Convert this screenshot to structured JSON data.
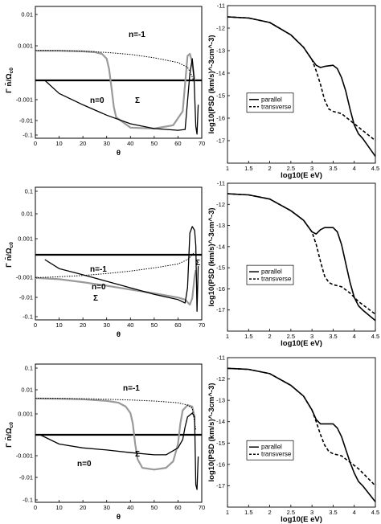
{
  "chart_data": [
    {
      "id": "growth-1",
      "type": "line",
      "xlabel": "θ",
      "ylabel": "Γ n̄/Ω",
      "ylabel_sub": "c0",
      "xlim": [
        0,
        70
      ],
      "x_ticks": [
        "0",
        "10",
        "20",
        "30",
        "40",
        "50",
        "60",
        "70"
      ],
      "y_ticks": [
        "0.01",
        "0.001",
        "-0.001",
        "-0.01",
        "-0.1"
      ],
      "y_scale": "symlog",
      "annotations": [
        "n=-1",
        "n=0",
        "Σ"
      ],
      "series": [
        {
          "name": "n=-1",
          "style": "solid-gray",
          "x": [
            0,
            10,
            20,
            25,
            28,
            30,
            31,
            32,
            33,
            34,
            40,
            50,
            58,
            62,
            64,
            65,
            66,
            67
          ],
          "y": [
            0.007,
            0.0069,
            0.0065,
            0.006,
            0.005,
            0.003,
            0.001,
            -0.0006,
            -0.005,
            -0.015,
            -0.045,
            -0.05,
            -0.035,
            -0.008,
            0.004,
            0.005,
            0.002,
            0
          ]
        },
        {
          "name": "n=0",
          "style": "solid-black",
          "x": [
            4,
            10,
            20,
            30,
            40,
            50,
            60,
            63,
            65,
            66,
            66.8,
            67.5,
            68,
            68.5
          ],
          "y": [
            -0.0003,
            -0.0012,
            -0.004,
            -0.012,
            -0.03,
            -0.05,
            -0.06,
            -0.055,
            0.0006,
            0.003,
            0.0003,
            -0.04,
            -0.09,
            -0.004
          ]
        },
        {
          "name": "Σ",
          "style": "dotted-black",
          "x": [
            0,
            10,
            20,
            30,
            40,
            50,
            60,
            64,
            65.5,
            66.5
          ],
          "y": [
            0.0072,
            0.0071,
            0.0067,
            0.0058,
            0.0047,
            0.0033,
            0.002,
            0.0012,
            0.0006,
            0.0001
          ]
        }
      ]
    },
    {
      "id": "psd-1",
      "type": "line",
      "xlabel": "log10(E eV)",
      "ylabel": "log10(PSD (km/s)^-3cm^-3)",
      "xlim": [
        1,
        4.5
      ],
      "ylim": [
        -18,
        -11
      ],
      "x_ticks": [
        "1",
        "1.5",
        "2",
        "2.5",
        "3",
        "3.5",
        "4",
        "4.5"
      ],
      "y_ticks": [
        "-11",
        "-12",
        "-13",
        "-14",
        "-15",
        "-16",
        "-17"
      ],
      "legend": [
        "parallel",
        "transverse"
      ],
      "series": [
        {
          "name": "parallel",
          "style": "solid",
          "x": [
            1,
            1.5,
            2,
            2.5,
            2.8,
            3.0,
            3.1,
            3.2,
            3.3,
            3.5,
            3.6,
            3.7,
            3.8,
            3.9,
            4.0,
            4.1,
            4.2,
            4.5
          ],
          "y": [
            -11.5,
            -11.55,
            -11.75,
            -12.3,
            -12.85,
            -13.4,
            -13.65,
            -13.75,
            -13.7,
            -13.65,
            -13.8,
            -14.2,
            -14.8,
            -15.6,
            -16.3,
            -16.7,
            -16.9,
            -17.7
          ]
        },
        {
          "name": "transverse",
          "style": "dashed",
          "x": [
            1,
            1.5,
            2,
            2.5,
            2.8,
            3.0,
            3.1,
            3.2,
            3.3,
            3.4,
            3.5,
            3.7,
            3.9,
            4.1,
            4.3,
            4.5
          ],
          "y": [
            -11.5,
            -11.55,
            -11.75,
            -12.3,
            -12.85,
            -13.4,
            -13.9,
            -14.5,
            -15.2,
            -15.6,
            -15.7,
            -15.8,
            -16.1,
            -16.4,
            -16.7,
            -17.0
          ]
        }
      ]
    },
    {
      "id": "growth-2",
      "type": "line",
      "xlabel": "θ",
      "ylabel": "Γ n̄/Ω",
      "ylabel_sub": "c0",
      "xlim": [
        0,
        70
      ],
      "x_ticks": [
        "0",
        "10",
        "20",
        "30",
        "40",
        "50",
        "60",
        "70"
      ],
      "y_ticks": [
        "0.1",
        "0.01",
        "0.001",
        "-0.001",
        "-0.01",
        "-0.1"
      ],
      "y_scale": "symlog",
      "annotations": [
        "n=-1",
        "n=0",
        "Σ",
        "Σ"
      ],
      "series": [
        {
          "name": "n=-1",
          "style": "solid-gray",
          "x": [
            0,
            10,
            20,
            30,
            40,
            50,
            60,
            63,
            65,
            66,
            66.5,
            67,
            67.5
          ],
          "y": [
            -0.0035,
            -0.004,
            -0.0055,
            -0.008,
            -0.012,
            -0.018,
            -0.028,
            -0.035,
            -0.06,
            -0.03,
            -0.01,
            -0.003,
            -0.0015
          ]
        },
        {
          "name": "n=0",
          "style": "solid-black",
          "x": [
            4,
            10,
            20,
            30,
            40,
            50,
            60,
            63,
            64,
            65,
            66,
            67,
            67.5,
            68,
            68.5
          ],
          "y": [
            -0.0005,
            -0.0013,
            -0.0025,
            -0.005,
            -0.01,
            -0.02,
            -0.035,
            -0.05,
            -0.01,
            0.003,
            0.006,
            0.004,
            0.0008,
            -0.12,
            -0.001
          ]
        },
        {
          "name": "Σ",
          "style": "dotted-black",
          "x": [
            0,
            10,
            20,
            30,
            40,
            50,
            60,
            64,
            66,
            67
          ],
          "y": [
            -0.0034,
            -0.0031,
            -0.0027,
            -0.0022,
            -0.0017,
            -0.0012,
            -0.0008,
            -0.0005,
            -0.0002,
            0.0004
          ]
        }
      ]
    },
    {
      "id": "psd-2",
      "type": "line",
      "xlabel": "log10(E eV)",
      "ylabel": "log10(PSD (km/s)^-3cm^-3)",
      "xlim": [
        1,
        4.5
      ],
      "ylim": [
        -18,
        -11
      ],
      "x_ticks": [
        "1",
        "1.5",
        "2",
        "2.5",
        "3",
        "3.5",
        "4",
        "4.5"
      ],
      "y_ticks": [
        "-11",
        "-12",
        "-13",
        "-14",
        "-15",
        "-16",
        "-17"
      ],
      "legend": [
        "parallel",
        "transverse"
      ],
      "series": [
        {
          "name": "parallel",
          "style": "solid",
          "x": [
            1,
            1.5,
            2,
            2.5,
            2.8,
            3.0,
            3.1,
            3.2,
            3.3,
            3.5,
            3.6,
            3.7,
            3.8,
            3.9,
            4.0,
            4.1,
            4.2,
            4.5
          ],
          "y": [
            -11.5,
            -11.55,
            -11.75,
            -12.3,
            -12.75,
            -13.3,
            -13.4,
            -13.2,
            -13.1,
            -13.1,
            -13.3,
            -13.9,
            -14.8,
            -15.7,
            -16.4,
            -16.8,
            -17.0,
            -17.5
          ]
        },
        {
          "name": "transverse",
          "style": "dashed",
          "x": [
            1,
            1.5,
            2,
            2.5,
            2.8,
            3.0,
            3.1,
            3.2,
            3.3,
            3.4,
            3.5,
            3.7,
            3.9,
            4.1,
            4.3,
            4.5
          ],
          "y": [
            -11.5,
            -11.55,
            -11.75,
            -12.3,
            -12.75,
            -13.3,
            -13.9,
            -14.7,
            -15.4,
            -15.7,
            -15.8,
            -15.9,
            -16.2,
            -16.6,
            -16.9,
            -17.2
          ]
        }
      ]
    },
    {
      "id": "growth-3",
      "type": "line",
      "xlabel": "θ",
      "ylabel": "Γ n̄/Ω",
      "ylabel_sub": "c0",
      "xlim": [
        0,
        70
      ],
      "x_ticks": [
        "0",
        "10",
        "20",
        "30",
        "40",
        "50",
        "60",
        "70"
      ],
      "y_ticks": [
        "0.1",
        "0.01",
        "0.001",
        "-0.001",
        "-0.01",
        "-0.1"
      ],
      "y_scale": "symlog",
      "annotations": [
        "n=-1",
        "n=0",
        "Σ"
      ],
      "series": [
        {
          "name": "n=-1",
          "style": "solid-gray",
          "x": [
            0,
            10,
            20,
            30,
            35,
            38,
            40,
            41,
            42,
            43,
            45,
            50,
            55,
            58,
            60,
            61,
            62,
            64,
            66,
            67
          ],
          "y": [
            0.014,
            0.0138,
            0.013,
            0.011,
            0.009,
            0.006,
            0.003,
            0.001,
            -0.0008,
            -0.004,
            -0.01,
            -0.012,
            -0.01,
            -0.005,
            -0.0008,
            0.001,
            0.004,
            0.007,
            0.006,
            0.002
          ]
        },
        {
          "name": "n=0",
          "style": "solid-black",
          "x": [
            2,
            10,
            20,
            30,
            40,
            50,
            55,
            60,
            62,
            63,
            64,
            66,
            67,
            67.5,
            68,
            68.5
          ],
          "y": [
            -0.0003,
            -0.0008,
            -0.0012,
            -0.0015,
            -0.002,
            -0.0025,
            -0.0025,
            -0.0012,
            -0.0005,
            0.0007,
            0.002,
            0.003,
            0.002,
            -0.06,
            -0.1,
            -0.003
          ]
        },
        {
          "name": "Σ",
          "style": "dotted-black",
          "x": [
            0,
            10,
            20,
            30,
            40,
            50,
            60,
            64,
            66,
            67.5
          ],
          "y": [
            0.0145,
            0.0143,
            0.0138,
            0.013,
            0.012,
            0.0108,
            0.009,
            0.007,
            0.005,
            0.0005
          ]
        }
      ]
    },
    {
      "id": "psd-3",
      "type": "line",
      "xlabel": "log10(E eV)",
      "ylabel": "log10(PSD (km/s)^-3cm^-3)",
      "xlim": [
        1,
        4.5
      ],
      "ylim": [
        -18,
        -11
      ],
      "x_ticks": [
        "1",
        "1.5",
        "2",
        "2.5",
        "3",
        "3.5",
        "4",
        "4.5"
      ],
      "y_ticks": [
        "-11",
        "-12",
        "-13",
        "-14",
        "-15",
        "-16",
        "-17"
      ],
      "legend": [
        "parallel",
        "transverse"
      ],
      "series": [
        {
          "name": "parallel",
          "style": "solid",
          "x": [
            1,
            1.5,
            2,
            2.5,
            2.8,
            3.0,
            3.1,
            3.2,
            3.3,
            3.5,
            3.6,
            3.7,
            3.8,
            3.9,
            4.0,
            4.1,
            4.2,
            4.5
          ],
          "y": [
            -11.5,
            -11.55,
            -11.75,
            -12.3,
            -12.8,
            -13.45,
            -13.9,
            -14.1,
            -14.1,
            -14.1,
            -14.3,
            -14.7,
            -15.3,
            -15.9,
            -16.4,
            -16.8,
            -17.0,
            -17.75
          ]
        },
        {
          "name": "transverse",
          "style": "dashed",
          "x": [
            1,
            1.5,
            2,
            2.5,
            2.8,
            3.0,
            3.1,
            3.2,
            3.3,
            3.4,
            3.5,
            3.7,
            3.9,
            4.1,
            4.3,
            4.5
          ],
          "y": [
            -11.5,
            -11.55,
            -11.75,
            -12.3,
            -12.8,
            -13.45,
            -14.0,
            -14.6,
            -15.1,
            -15.4,
            -15.5,
            -15.6,
            -15.9,
            -16.2,
            -16.6,
            -17.0
          ]
        }
      ]
    }
  ]
}
